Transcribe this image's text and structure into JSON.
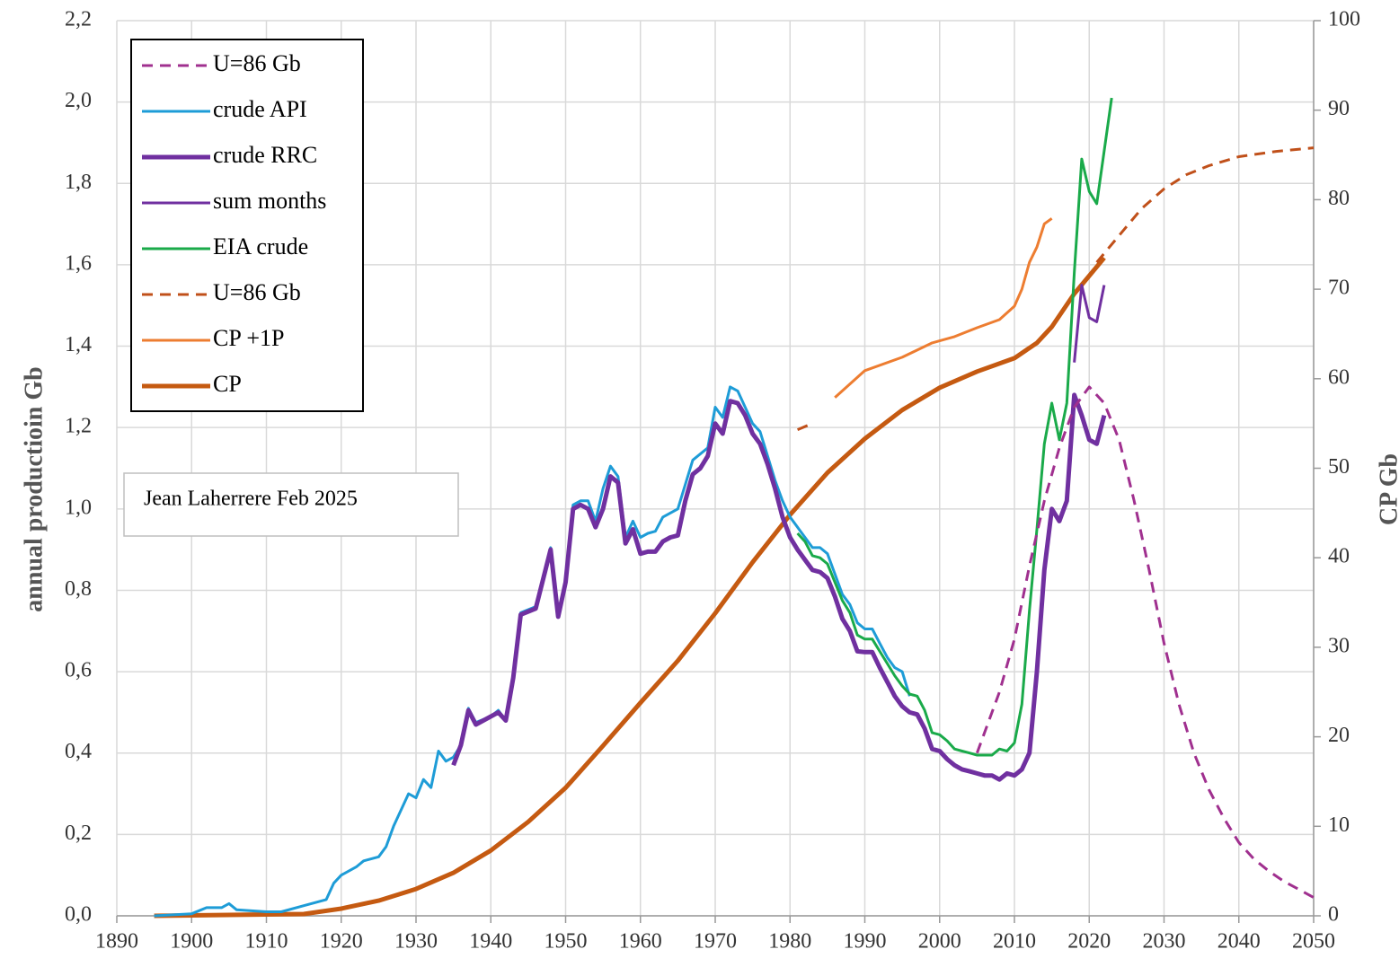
{
  "chart_data": {
    "type": "line",
    "y_label": "annual productioin Gb",
    "y2_label": "CP Gb",
    "annotation": "Jean Laherrere Feb 2025",
    "xlim": [
      1890,
      2050
    ],
    "xticks": [
      1890,
      1900,
      1910,
      1920,
      1930,
      1940,
      1950,
      1960,
      1970,
      1980,
      1990,
      2000,
      2010,
      2020,
      2030,
      2040,
      2050
    ],
    "ylim": [
      0,
      2.2
    ],
    "yticks": [
      {
        "value": 0,
        "label": "0,0"
      },
      {
        "value": 0.2,
        "label": "0,2"
      },
      {
        "value": 0.4,
        "label": "0,4"
      },
      {
        "value": 0.6,
        "label": "0,6"
      },
      {
        "value": 0.8,
        "label": "0,8"
      },
      {
        "value": 1.0,
        "label": "1,0"
      },
      {
        "value": 1.2,
        "label": "1,2"
      },
      {
        "value": 1.4,
        "label": "1,4"
      },
      {
        "value": 1.6,
        "label": "1,6"
      },
      {
        "value": 1.8,
        "label": "1,8"
      },
      {
        "value": 2.0,
        "label": "2,0"
      },
      {
        "value": 2.2,
        "label": "2,2"
      }
    ],
    "y2lim": [
      0,
      100
    ],
    "y2ticks": [
      0,
      10,
      20,
      30,
      40,
      50,
      60,
      70,
      80,
      90,
      100
    ],
    "grid": true,
    "legend": "upper left",
    "series": [
      {
        "name": "U=86 Gb",
        "color": "#a0308f",
        "dash": true,
        "width": 3,
        "x": [
          2005,
          2008,
          2010,
          2012,
          2014,
          2016,
          2018,
          2020,
          2022,
          2024,
          2026,
          2028,
          2030,
          2032,
          2034,
          2036,
          2038,
          2040,
          2042,
          2044,
          2046,
          2048,
          2050
        ],
        "values": [
          0.4,
          0.55,
          0.68,
          0.86,
          1.02,
          1.15,
          1.25,
          1.3,
          1.26,
          1.17,
          1.02,
          0.85,
          0.67,
          0.52,
          0.4,
          0.31,
          0.24,
          0.18,
          0.14,
          0.11,
          0.085,
          0.065,
          0.045
        ]
      },
      {
        "name": "crude API",
        "color": "#1e9cd7",
        "width": 3,
        "x": [
          1895,
          1900,
          1902,
          1904,
          1905,
          1906,
          1910,
          1912,
          1915,
          1918,
          1919,
          1920,
          1922,
          1923,
          1925,
          1926,
          1927,
          1929,
          1930,
          1931,
          1932,
          1933,
          1934,
          1935,
          1936,
          1937,
          1938,
          1940,
          1941,
          1942,
          1943,
          1944,
          1946,
          1948,
          1949,
          1950,
          1951,
          1952,
          1953,
          1954,
          1955,
          1956,
          1957,
          1958,
          1959,
          1960,
          1961,
          1962,
          1963,
          1965,
          1967,
          1969,
          1970,
          1971,
          1972,
          1973,
          1974,
          1975,
          1976,
          1977,
          1978,
          1979,
          1980,
          1982,
          1983,
          1984,
          1985,
          1986,
          1987,
          1988,
          1989,
          1990,
          1991,
          1992,
          1993,
          1994,
          1995,
          1996
        ],
        "values": [
          0,
          0.005,
          0.02,
          0.02,
          0.03,
          0.015,
          0.01,
          0.01,
          0.025,
          0.04,
          0.08,
          0.1,
          0.12,
          0.135,
          0.145,
          0.17,
          0.22,
          0.3,
          0.29,
          0.335,
          0.315,
          0.405,
          0.38,
          0.39,
          0.42,
          0.51,
          0.475,
          0.49,
          0.505,
          0.48,
          0.59,
          0.745,
          0.76,
          0.905,
          0.74,
          0.82,
          1.01,
          1.02,
          1.02,
          0.97,
          1.05,
          1.105,
          1.08,
          0.93,
          0.97,
          0.93,
          0.94,
          0.945,
          0.98,
          1.0,
          1.12,
          1.15,
          1.25,
          1.225,
          1.3,
          1.29,
          1.25,
          1.21,
          1.19,
          1.13,
          1.07,
          1.02,
          0.98,
          0.93,
          0.905,
          0.905,
          0.89,
          0.84,
          0.79,
          0.765,
          0.72,
          0.705,
          0.705,
          0.67,
          0.635,
          0.61,
          0.6,
          0.54
        ]
      },
      {
        "name": "crude RRC",
        "color": "#7030a0",
        "width": 5,
        "x": [
          1935,
          1936,
          1937,
          1938,
          1940,
          1941,
          1942,
          1943,
          1944,
          1946,
          1948,
          1949,
          1950,
          1951,
          1952,
          1953,
          1954,
          1955,
          1956,
          1957,
          1958,
          1959,
          1960,
          1961,
          1962,
          1963,
          1964,
          1965,
          1966,
          1967,
          1968,
          1969,
          1970,
          1971,
          1972,
          1973,
          1974,
          1975,
          1976,
          1977,
          1978,
          1979,
          1980,
          1981,
          1982,
          1983,
          1984,
          1985,
          1986,
          1987,
          1988,
          1989,
          1990,
          1991,
          1992,
          1993,
          1994,
          1995,
          1996,
          1997,
          1998,
          1999,
          2000,
          2001,
          2002,
          2003,
          2004,
          2005,
          2006,
          2007,
          2008,
          2009,
          2010,
          2011,
          2012,
          2013,
          2014,
          2015,
          2016,
          2017,
          2018,
          2019,
          2020,
          2021,
          2022
        ],
        "values": [
          0.37,
          0.42,
          0.505,
          0.47,
          0.49,
          0.5,
          0.48,
          0.585,
          0.74,
          0.755,
          0.9,
          0.735,
          0.82,
          1.0,
          1.01,
          1.0,
          0.955,
          1.0,
          1.08,
          1.065,
          0.915,
          0.95,
          0.89,
          0.895,
          0.895,
          0.92,
          0.93,
          0.935,
          1.02,
          1.085,
          1.1,
          1.13,
          1.21,
          1.185,
          1.265,
          1.26,
          1.23,
          1.185,
          1.16,
          1.11,
          1.05,
          0.98,
          0.93,
          0.9,
          0.875,
          0.85,
          0.845,
          0.83,
          0.785,
          0.73,
          0.7,
          0.65,
          0.648,
          0.648,
          0.61,
          0.575,
          0.54,
          0.515,
          0.5,
          0.495,
          0.46,
          0.41,
          0.405,
          0.385,
          0.37,
          0.36,
          0.355,
          0.35,
          0.345,
          0.345,
          0.335,
          0.35,
          0.345,
          0.36,
          0.4,
          0.6,
          0.85,
          1.0,
          0.97,
          1.02,
          1.28,
          1.23,
          1.17,
          1.16,
          1.23
        ]
      },
      {
        "name": "sum months",
        "color": "#7030a0",
        "width": 3,
        "x": [
          2018,
          2019,
          2020,
          2021,
          2022
        ],
        "values": [
          1.36,
          1.55,
          1.47,
          1.46,
          1.55
        ]
      },
      {
        "name": "EIA crude",
        "color": "#1aaa4a",
        "width": 3,
        "x": [
          1981,
          1982,
          1983,
          1984,
          1985,
          1986,
          1987,
          1988,
          1989,
          1990,
          1991,
          1992,
          1993,
          1994,
          1995,
          1996,
          1997,
          1998,
          1999,
          2000,
          2001,
          2002,
          2003,
          2004,
          2005,
          2006,
          2007,
          2008,
          2009,
          2010,
          2011,
          2012,
          2013,
          2014,
          2015,
          2016,
          2017,
          2018,
          2019,
          2020,
          2021,
          2022,
          2023
        ],
        "values": [
          0.94,
          0.92,
          0.885,
          0.88,
          0.865,
          0.82,
          0.775,
          0.745,
          0.69,
          0.68,
          0.68,
          0.65,
          0.62,
          0.59,
          0.565,
          0.545,
          0.54,
          0.505,
          0.45,
          0.445,
          0.43,
          0.41,
          0.405,
          0.4,
          0.395,
          0.395,
          0.395,
          0.41,
          0.405,
          0.425,
          0.52,
          0.75,
          0.95,
          1.16,
          1.26,
          1.17,
          1.26,
          1.58,
          1.86,
          1.78,
          1.75,
          1.88,
          2.01
        ]
      },
      {
        "name": "U=86 Gb",
        "color": "#c0501a",
        "dash": true,
        "width": 3,
        "axis": "y2",
        "x": [
          1981,
          1983,
          2000,
          2021,
          2024,
          2027,
          2030,
          2033,
          2036,
          2040,
          2045,
          2050
        ],
        "values": [
          54.3,
          55.0,
          null,
          73.0,
          76.0,
          79.0,
          81.2,
          82.8,
          83.8,
          84.8,
          85.4,
          85.8
        ]
      },
      {
        "name": "CP +1P",
        "color": "#ed7d31",
        "width": 3,
        "axis": "y2",
        "x": [
          1986,
          1990,
          1995,
          1998,
          1999,
          2002,
          2005,
          2008,
          2010,
          2011,
          2012,
          2013,
          2014,
          2015
        ],
        "values": [
          57.9,
          60.9,
          62.4,
          63.6,
          64.0,
          64.7,
          65.7,
          66.6,
          68.1,
          70.0,
          73.0,
          74.7,
          77.3,
          77.9
        ]
      },
      {
        "name": "CP",
        "color": "#c55a11",
        "width": 5,
        "axis": "y2",
        "x": [
          1895,
          1915,
          1920,
          1925,
          1930,
          1935,
          1940,
          1945,
          1950,
          1955,
          1960,
          1965,
          1970,
          1975,
          1980,
          1985,
          1990,
          1995,
          2000,
          2005,
          2010,
          2013,
          2015,
          2018,
          2020,
          2022
        ],
        "values": [
          0,
          0.2,
          0.8,
          1.7,
          3.0,
          4.8,
          7.3,
          10.5,
          14.3,
          19.0,
          23.8,
          28.5,
          33.8,
          39.5,
          44.8,
          49.5,
          53.3,
          56.5,
          59.0,
          60.8,
          62.3,
          64.0,
          65.8,
          69.5,
          71.5,
          73.5
        ]
      }
    ]
  }
}
